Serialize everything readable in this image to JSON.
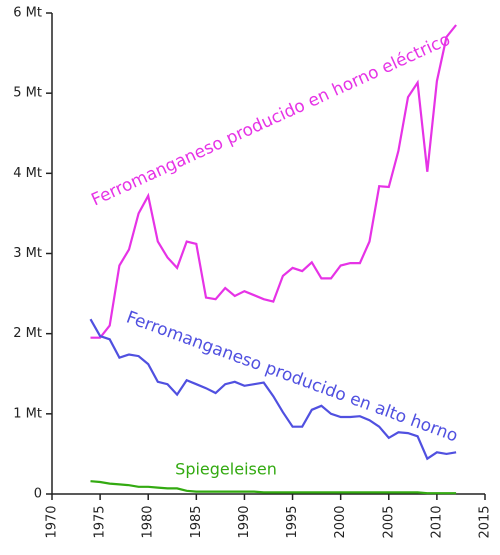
{
  "chart_data": {
    "type": "line",
    "x": [
      1974,
      1975,
      1976,
      1977,
      1978,
      1979,
      1980,
      1981,
      1982,
      1983,
      1984,
      1985,
      1986,
      1987,
      1988,
      1989,
      1990,
      1991,
      1992,
      1993,
      1994,
      1995,
      1996,
      1997,
      1998,
      1999,
      2000,
      2001,
      2002,
      2003,
      2004,
      2005,
      2006,
      2007,
      2008,
      2009,
      2010,
      2011,
      2012
    ],
    "series": [
      {
        "name": "Ferromanganeso producido en horno eléctrico",
        "color": "#e633e6",
        "values": [
          1.95,
          1.95,
          2.1,
          2.85,
          3.05,
          3.5,
          3.72,
          3.15,
          2.95,
          2.82,
          3.15,
          3.12,
          2.45,
          2.43,
          2.57,
          2.47,
          2.53,
          2.48,
          2.43,
          2.4,
          2.72,
          2.82,
          2.78,
          2.89,
          2.69,
          2.69,
          2.85,
          2.88,
          2.88,
          3.15,
          3.84,
          3.83,
          4.28,
          4.95,
          5.13,
          4.02,
          5.15,
          5.7,
          5.85
        ]
      },
      {
        "name": "Ferromanganeso producido en alto horno",
        "color": "#5050e0",
        "values": [
          2.18,
          1.97,
          1.93,
          1.7,
          1.74,
          1.72,
          1.62,
          1.4,
          1.37,
          1.24,
          1.42,
          1.37,
          1.32,
          1.26,
          1.37,
          1.4,
          1.35,
          1.37,
          1.39,
          1.22,
          1.02,
          0.84,
          0.84,
          1.05,
          1.1,
          1.0,
          0.96,
          0.96,
          0.97,
          0.92,
          0.84,
          0.7,
          0.77,
          0.76,
          0.72,
          0.44,
          0.52,
          0.5,
          0.52
        ]
      },
      {
        "name": "Spiegeleisen",
        "color": "#33aa11",
        "values": [
          0.16,
          0.15,
          0.13,
          0.12,
          0.11,
          0.09,
          0.09,
          0.08,
          0.07,
          0.07,
          0.04,
          0.03,
          0.03,
          0.03,
          0.03,
          0.03,
          0.03,
          0.03,
          0.02,
          0.02,
          0.02,
          0.02,
          0.02,
          0.02,
          0.02,
          0.02,
          0.02,
          0.02,
          0.02,
          0.02,
          0.02,
          0.02,
          0.02,
          0.02,
          0.02,
          0.01,
          0.01,
          0.01,
          0.01
        ]
      }
    ],
    "xlim": [
      1970,
      2015
    ],
    "xticks": [
      1970,
      1975,
      1980,
      1985,
      1990,
      1995,
      2000,
      2005,
      2010,
      2015
    ],
    "ylim": [
      0,
      6
    ],
    "yticks": [
      0,
      {
        "value": 1,
        "label": "1 Mt"
      },
      {
        "value": 2,
        "label": "2 Mt"
      },
      {
        "value": 3,
        "label": "3 Mt"
      },
      {
        "value": 4,
        "label": "4 Mt"
      },
      {
        "value": 5,
        "label": "5 Mt"
      },
      {
        "value": 6,
        "label": "6 Mt"
      }
    ]
  }
}
